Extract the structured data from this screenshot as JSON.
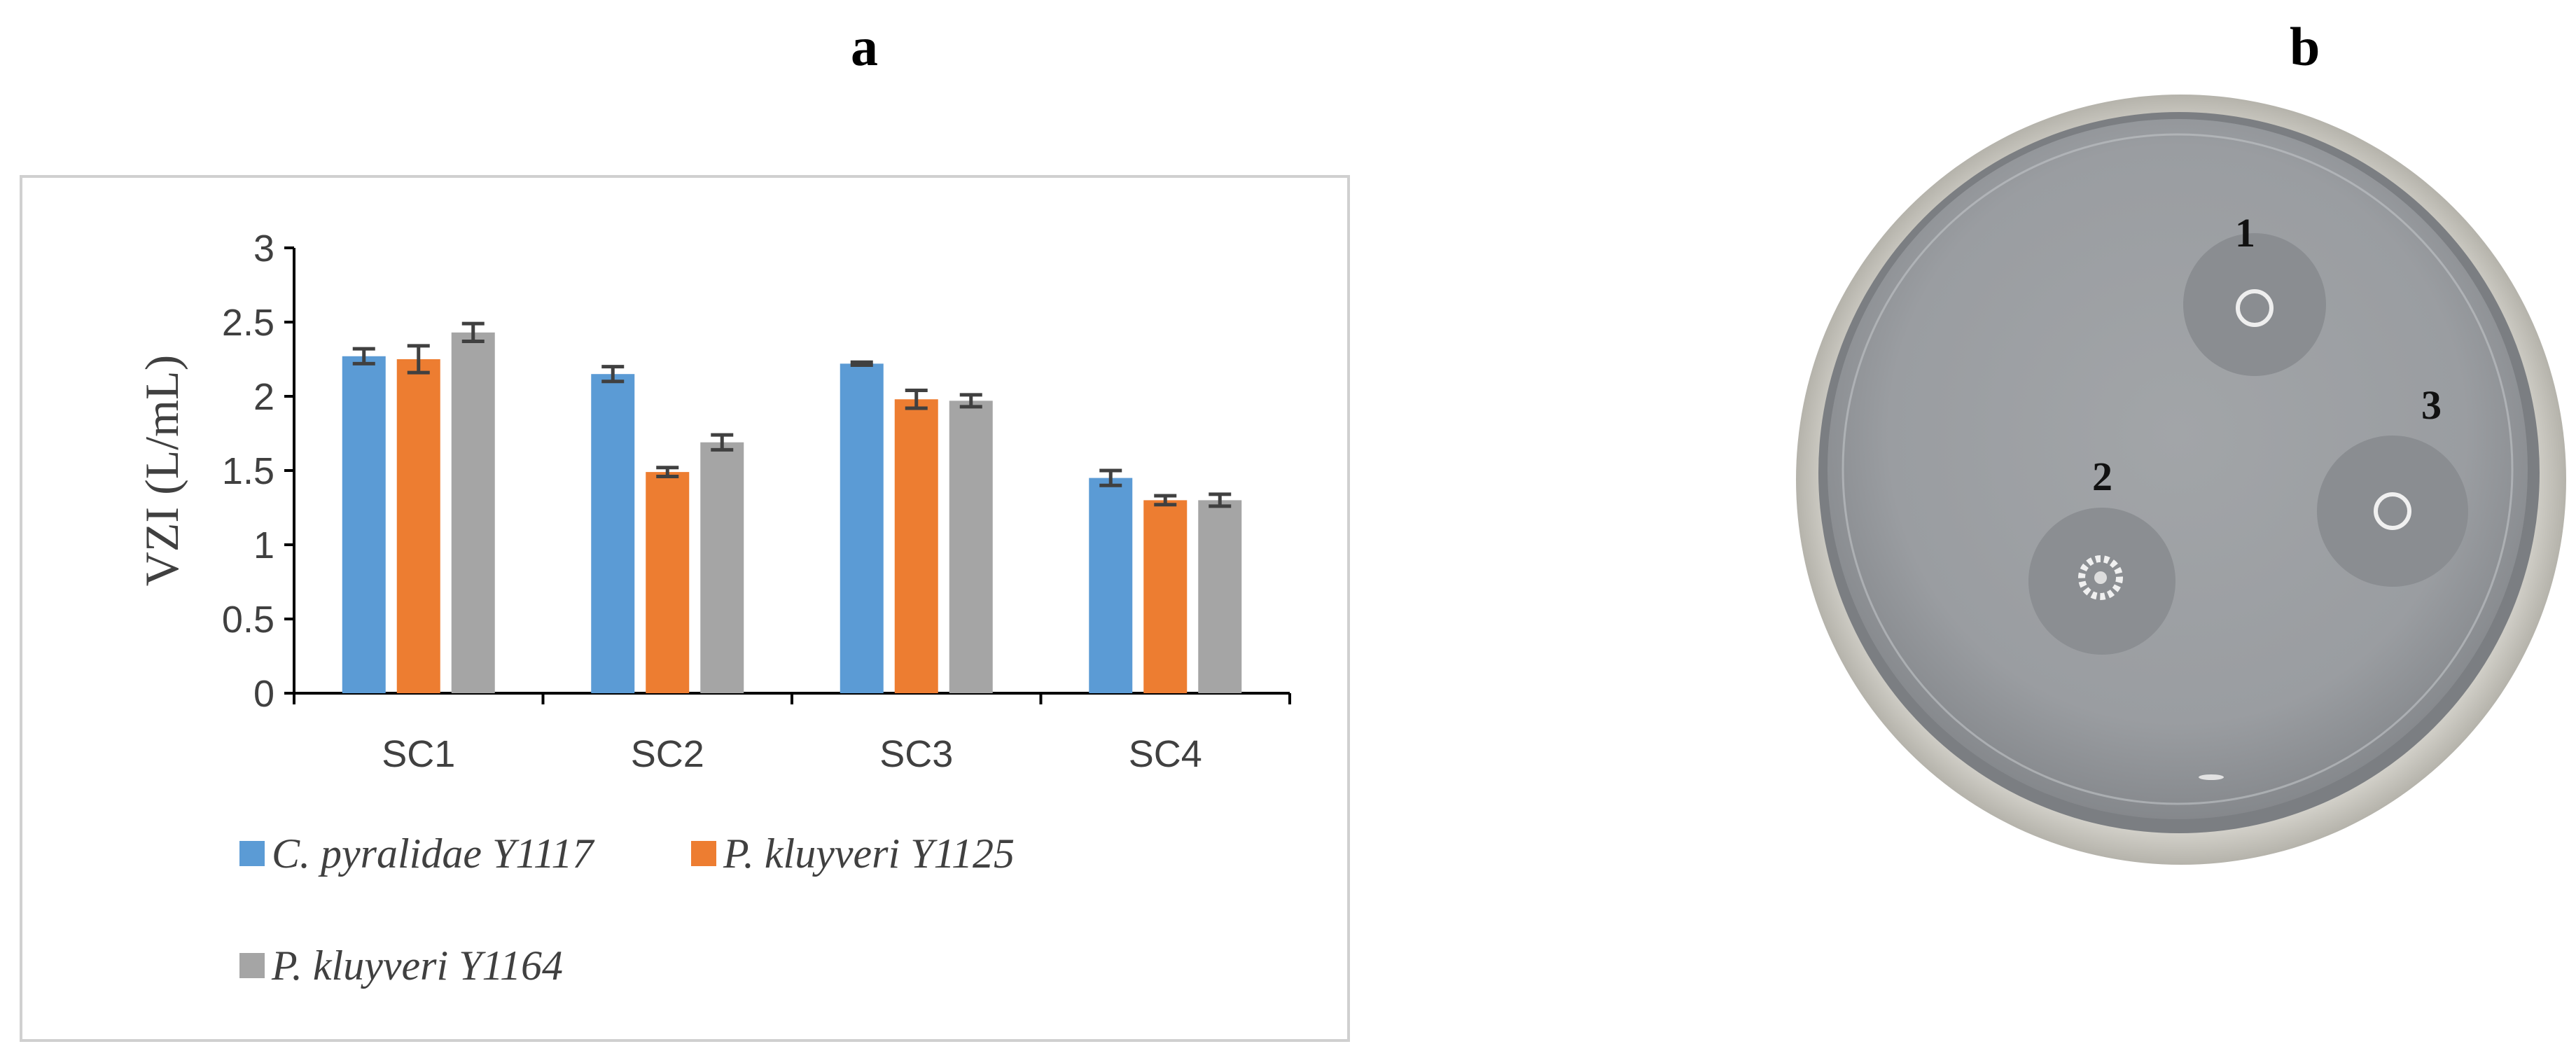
{
  "panel_labels": {
    "a": "a",
    "b": "b"
  },
  "chart_data": {
    "type": "bar",
    "title": "",
    "xlabel": "",
    "ylabel": "VZI (L/mL)",
    "ylim": [
      0,
      3
    ],
    "yticks": [
      "0",
      "0.5",
      "1",
      "1.5",
      "2",
      "2.5",
      "3"
    ],
    "categories": [
      "SC1",
      "SC2",
      "SC3",
      "SC4"
    ],
    "series": [
      {
        "name": "C. pyralidae Y1117",
        "color": "#5B9BD5",
        "values": [
          2.27,
          2.15,
          2.22,
          1.45
        ],
        "errors": [
          0.05,
          0.05,
          0.01,
          0.05
        ]
      },
      {
        "name": "P. kluyveri Y1125",
        "color": "#ED7D31",
        "values": [
          2.25,
          1.49,
          1.98,
          1.3
        ],
        "errors": [
          0.09,
          0.03,
          0.06,
          0.03
        ]
      },
      {
        "name": "P. kluyveri Y1164",
        "color": "#A5A5A5",
        "values": [
          2.43,
          1.69,
          1.97,
          1.3
        ],
        "errors": [
          0.06,
          0.05,
          0.04,
          0.04
        ]
      }
    ],
    "grid": false,
    "legend_position": "bottom"
  },
  "plate": {
    "zone_labels": [
      "1",
      "2",
      "3"
    ]
  }
}
